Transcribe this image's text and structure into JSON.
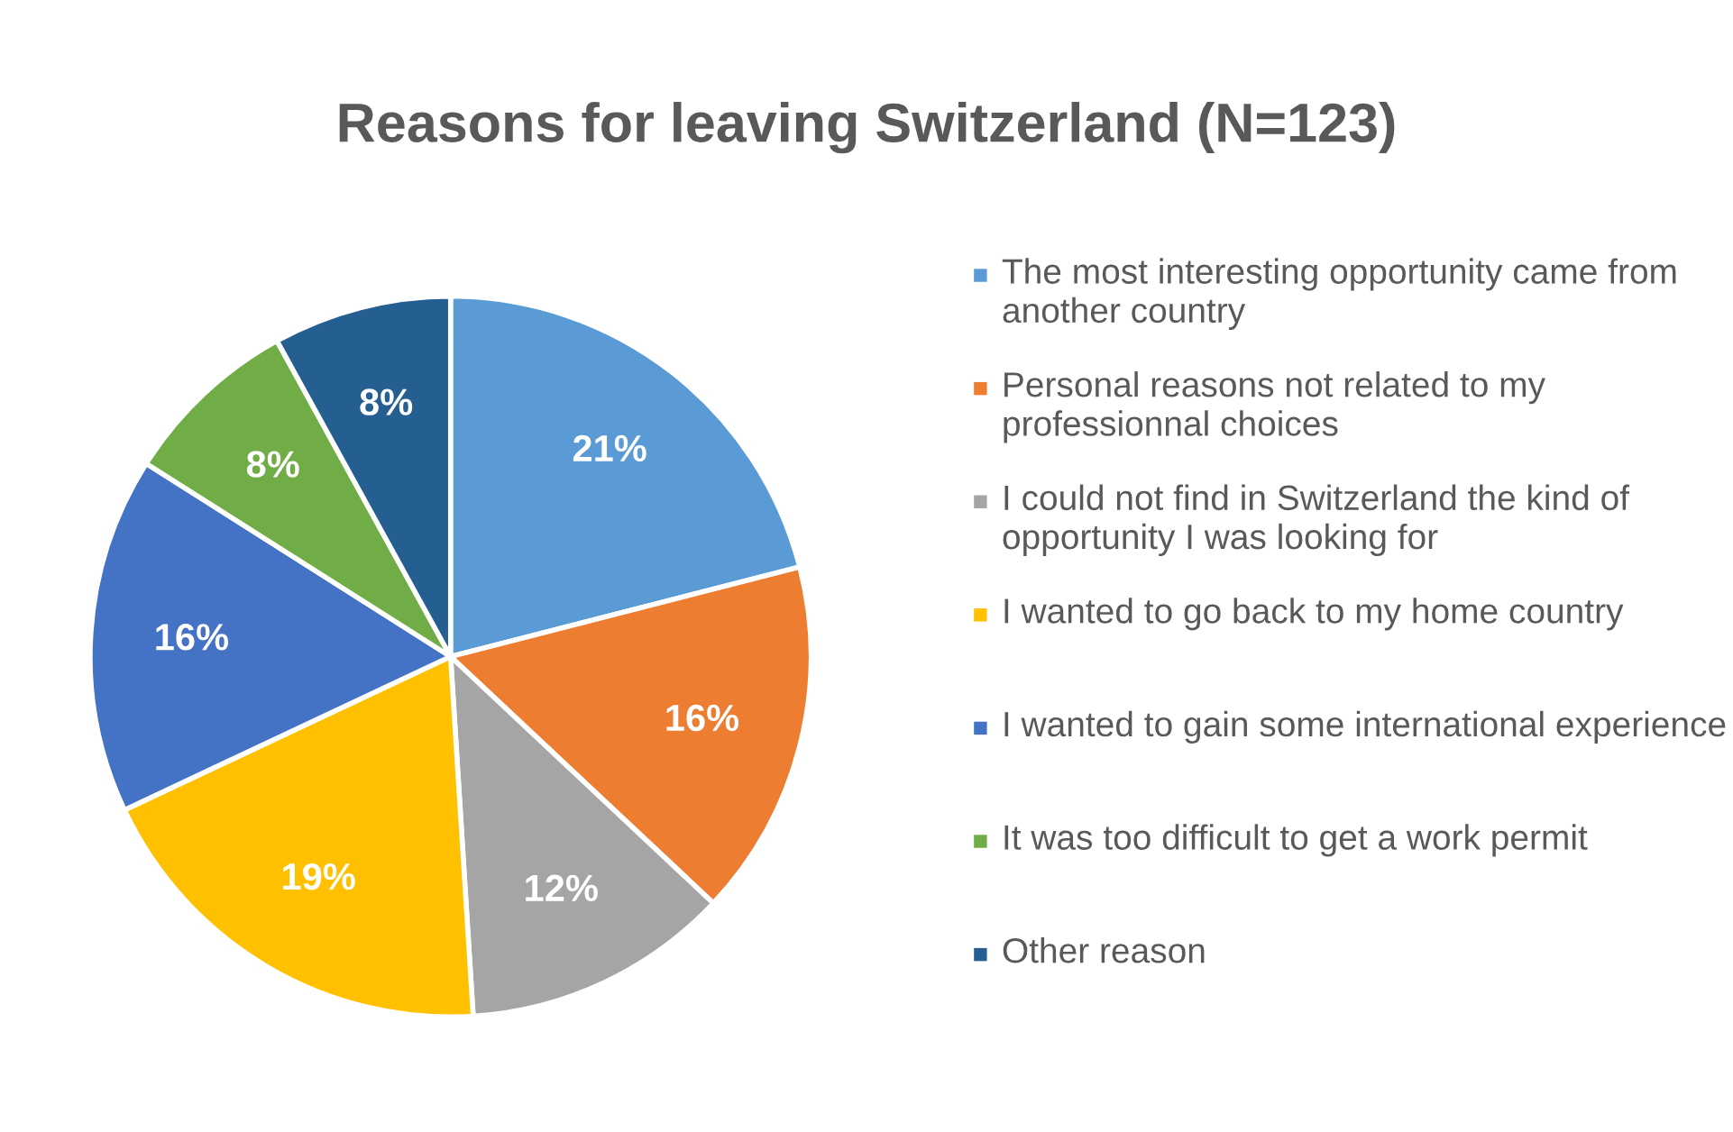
{
  "chart_data": {
    "type": "pie",
    "title": "Reasons for leaving Switzerland (N=123)",
    "categories": [
      "The most interesting opportunity came from another country",
      "Personal reasons not related to my professionnal choices",
      "I could not find in Switzerland the kind of opportunity I was looking for",
      "I wanted to go back to my home country",
      "I wanted to gain some international experience",
      "It was too difficult to get a work permit",
      "Other reason"
    ],
    "values": [
      21,
      16,
      12,
      19,
      16,
      8,
      8
    ],
    "colors": [
      "#5b9bd5",
      "#ed7d31",
      "#a5a5a5",
      "#ffc000",
      "#4472c4",
      "#70ad47",
      "#255e91"
    ],
    "value_labels": [
      "21%",
      "16%",
      "12%",
      "19%",
      "16%",
      "8%",
      "8%"
    ],
    "legend": "right"
  }
}
